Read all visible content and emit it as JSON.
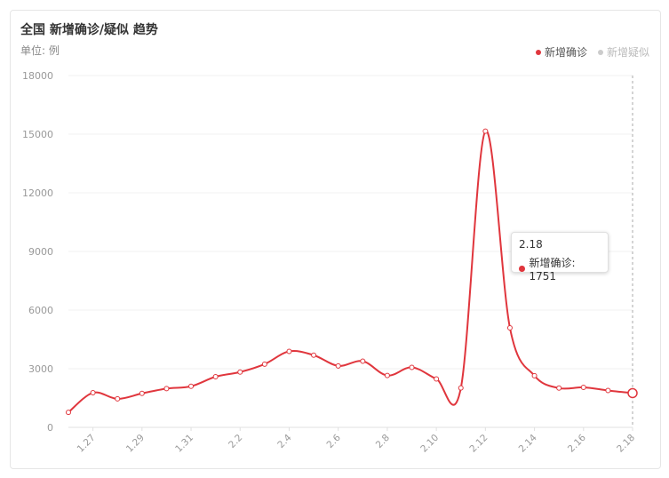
{
  "header": {
    "title": "全国 新增确诊/疑似 趋势",
    "unit": "单位: 例"
  },
  "legend": [
    {
      "label": "新增确诊",
      "color": "#e0363d",
      "active": true
    },
    {
      "label": "新增疑似",
      "color": "#cccccc",
      "active": false
    }
  ],
  "tooltip": {
    "date": "2.18",
    "series": "新增确诊",
    "value": "1751",
    "line": "新增确诊: 1751"
  },
  "chart_data": {
    "type": "line",
    "x": [
      "1.26",
      "1.27",
      "1.28",
      "1.29",
      "1.30",
      "1.31",
      "2.1",
      "2.2",
      "2.3",
      "2.4",
      "2.5",
      "2.6",
      "2.7",
      "2.8",
      "2.9",
      "2.10",
      "2.11",
      "2.12",
      "2.13",
      "2.14",
      "2.15",
      "2.16",
      "2.17",
      "2.18"
    ],
    "x_tick_labels": [
      "1.27",
      "1.29",
      "1.31",
      "2.2",
      "2.4",
      "2.6",
      "2.8",
      "2.10",
      "2.12",
      "2.14",
      "2.16",
      "2.18"
    ],
    "series": [
      {
        "name": "新增确诊",
        "color": "#e0363d",
        "values": [
          769,
          1771,
          1459,
          1737,
          1982,
          2102,
          2590,
          2829,
          3235,
          3887,
          3694,
          3143,
          3385,
          2652,
          3070,
          2478,
          2015,
          15152,
          5090,
          2641,
          2009,
          2048,
          1886,
          1751
        ]
      }
    ],
    "ylim": [
      0,
      18000
    ],
    "y_ticks": [
      0,
      3000,
      6000,
      9000,
      12000,
      15000,
      18000
    ],
    "grid": true,
    "legend_position": "top-right"
  }
}
